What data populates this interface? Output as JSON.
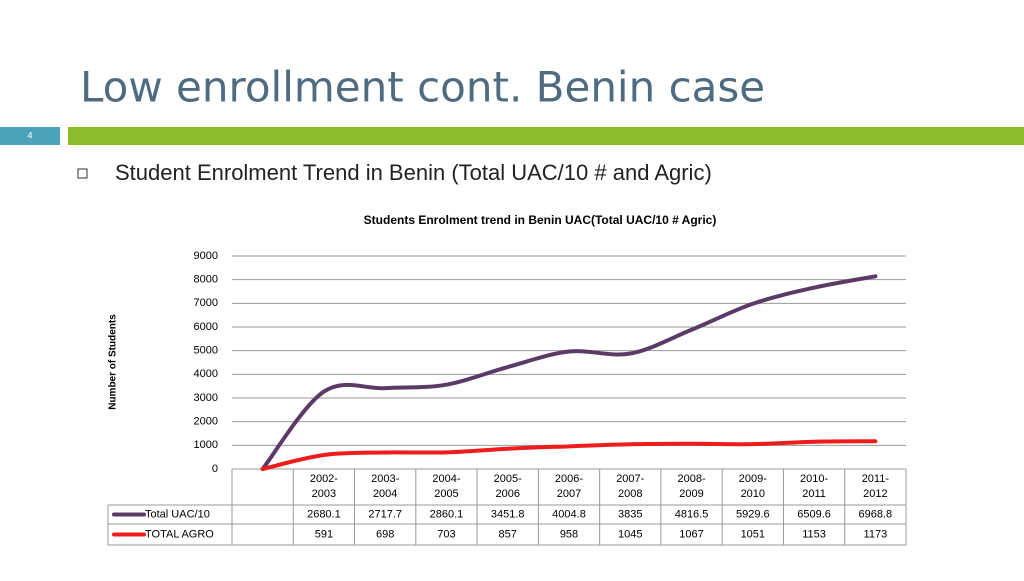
{
  "header": {
    "title": "Low enrollment cont. Benin case",
    "slide_number": "4"
  },
  "bullet": "Student Enrolment Trend in Benin (Total UAC/10 # and Agric)",
  "chart_data": {
    "type": "line",
    "stacked": true,
    "title": "Students Enrolment trend in Benin  UAC(Total UAC/10 # Agric)",
    "y_label": "Number of Students",
    "categories": [
      null,
      "2002-2003",
      "2003-2004",
      "2004-2005",
      "2005-2006",
      "2006-2007",
      "2007-2008",
      "2008-2009",
      "2009-2010",
      "2010-2011",
      "2011-2012"
    ],
    "series": [
      {
        "name": "Total UAC/10",
        "color": "#5b3a68",
        "values": [
          0,
          2680.1,
          2717.7,
          2860.1,
          3451.8,
          4004.8,
          3835,
          4816.5,
          5929.6,
          6509.6,
          6968.8
        ]
      },
      {
        "name": "TOTAL  AGRO",
        "color": "#ee1c1c",
        "values": [
          0,
          591,
          698,
          703,
          857,
          958,
          1045,
          1067,
          1051,
          1153,
          1173
        ]
      }
    ],
    "ylim": [
      0,
      9000
    ],
    "yticks": [
      0,
      1000,
      2000,
      3000,
      4000,
      5000,
      6000,
      7000,
      8000,
      9000
    ],
    "grid": true
  }
}
